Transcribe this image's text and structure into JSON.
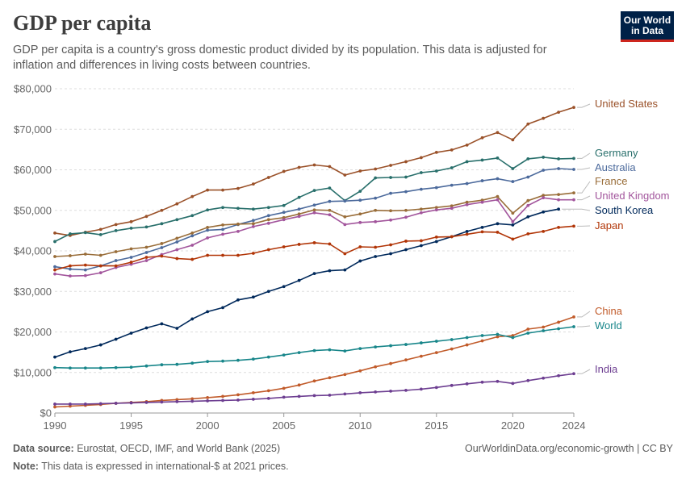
{
  "header": {
    "title": "GDP per capita",
    "subtitle": "GDP per capita is a country's gross domestic product divided by its population. This data is adjusted for inflation and differences in living costs between countries."
  },
  "logo": {
    "line1": "Our World",
    "line2": "in Data",
    "bg_color": "#002147",
    "accent_color": "#ce261e"
  },
  "footer": {
    "source_label": "Data source:",
    "source_text": "Eurostat, OECD, IMF, and World Bank (2025)",
    "note_label": "Note:",
    "note_text": "This data is expressed in international-$ at 2021 prices.",
    "license": "OurWorldinData.org/economic-growth | CC BY"
  },
  "chart_data": {
    "type": "line",
    "title": "GDP per capita",
    "xlim": [
      1990,
      2024
    ],
    "ylim": [
      0,
      80000
    ],
    "x_ticks": [
      1990,
      1995,
      2000,
      2005,
      2010,
      2015,
      2020,
      2024
    ],
    "y_ticks": [
      0,
      10000,
      20000,
      30000,
      40000,
      50000,
      60000,
      70000,
      80000
    ],
    "y_tick_labels": [
      "$0",
      "$10,000",
      "$20,000",
      "$30,000",
      "$40,000",
      "$50,000",
      "$60,000",
      "$70,000",
      "$80,000"
    ],
    "grid": "horizontal-dashed",
    "legend": "right-inline",
    "x_start": 1990,
    "series": [
      {
        "name": "United States",
        "color": "#9a5129",
        "values": [
          44400,
          43800,
          44600,
          45300,
          46500,
          47200,
          48500,
          50000,
          51600,
          53400,
          55000,
          55000,
          55400,
          56500,
          58100,
          59600,
          60600,
          61200,
          60800,
          58700,
          59700,
          60200,
          61100,
          62000,
          63000,
          64300,
          64900,
          66100,
          67900,
          69200,
          67400,
          71300,
          72700,
          74200,
          75400
        ]
      },
      {
        "name": "Germany",
        "color": "#286f6b",
        "values": [
          42300,
          44200,
          44500,
          44000,
          45000,
          45600,
          45900,
          46700,
          47700,
          48700,
          50100,
          50700,
          50500,
          50300,
          50700,
          51200,
          53200,
          54900,
          55500,
          52400,
          54700,
          58000,
          58100,
          58200,
          59300,
          59700,
          60500,
          62000,
          62400,
          62900,
          60300,
          62700,
          63100,
          62700,
          62800
        ]
      },
      {
        "name": "Australia",
        "color": "#4c6a9c",
        "values": [
          36100,
          35500,
          35300,
          36300,
          37600,
          38400,
          39600,
          40800,
          42200,
          43700,
          45100,
          45300,
          46500,
          47500,
          48700,
          49500,
          50300,
          51300,
          52200,
          52300,
          52500,
          53000,
          54200,
          54600,
          55200,
          55600,
          56200,
          56600,
          57300,
          57800,
          57100,
          58200,
          59900,
          60300,
          60100
        ]
      },
      {
        "name": "France",
        "color": "#996d39",
        "values": [
          38600,
          38800,
          39200,
          38900,
          39800,
          40500,
          40900,
          41800,
          43100,
          44400,
          45800,
          46400,
          46600,
          46700,
          47700,
          48200,
          49100,
          50100,
          50000,
          48400,
          49100,
          50000,
          49900,
          50000,
          50300,
          50700,
          51100,
          52000,
          52500,
          53400,
          49300,
          52400,
          53700,
          53900,
          54300
        ]
      },
      {
        "name": "United Kingdom",
        "color": "#a2559c",
        "values": [
          34300,
          33800,
          33900,
          34600,
          35900,
          36700,
          37600,
          39100,
          40300,
          41400,
          43200,
          44100,
          44800,
          46000,
          46800,
          47700,
          48500,
          49400,
          48900,
          46500,
          47000,
          47200,
          47600,
          48300,
          49400,
          50100,
          50500,
          51400,
          52000,
          52600,
          47200,
          51200,
          53100,
          52600,
          52600
        ]
      },
      {
        "name": "South Korea",
        "color": "#00295b",
        "values": [
          13800,
          15100,
          15900,
          16800,
          18200,
          19700,
          21000,
          22000,
          20900,
          23200,
          25000,
          26000,
          27900,
          28600,
          30000,
          31200,
          32700,
          34400,
          35100,
          35300,
          37500,
          38600,
          39300,
          40300,
          41300,
          42300,
          43500,
          44800,
          45800,
          46700,
          46400,
          48400,
          49600,
          50300
        ]
      },
      {
        "name": "Japan",
        "color": "#b13507",
        "values": [
          35300,
          36300,
          36500,
          36300,
          36300,
          37200,
          38400,
          38700,
          38100,
          37900,
          38900,
          38900,
          38900,
          39400,
          40300,
          41000,
          41600,
          42000,
          41700,
          39300,
          41000,
          40900,
          41500,
          42400,
          42500,
          43400,
          43500,
          44100,
          44700,
          44600,
          42900,
          44200,
          44800,
          45800,
          46100
        ]
      },
      {
        "name": "China",
        "color": "#c15b2a",
        "values": [
          1500,
          1700,
          1900,
          2100,
          2400,
          2600,
          2800,
          3100,
          3300,
          3500,
          3800,
          4100,
          4500,
          5000,
          5500,
          6100,
          6900,
          7900,
          8700,
          9500,
          10400,
          11400,
          12200,
          13100,
          14000,
          14900,
          15800,
          16800,
          17800,
          18800,
          19100,
          20700,
          21200,
          22400,
          23700
        ]
      },
      {
        "name": "World",
        "color": "#18868a",
        "values": [
          11200,
          11100,
          11100,
          11100,
          11200,
          11300,
          11600,
          11900,
          12000,
          12300,
          12700,
          12800,
          13000,
          13300,
          13800,
          14300,
          14900,
          15400,
          15600,
          15300,
          15900,
          16300,
          16600,
          16900,
          17300,
          17700,
          18100,
          18600,
          19100,
          19400,
          18600,
          19700,
          20300,
          20800,
          21300
        ]
      },
      {
        "name": "India",
        "color": "#6d3e91",
        "values": [
          2200,
          2200,
          2200,
          2300,
          2400,
          2500,
          2600,
          2700,
          2800,
          2900,
          3000,
          3100,
          3200,
          3400,
          3600,
          3900,
          4100,
          4300,
          4400,
          4700,
          5000,
          5200,
          5400,
          5600,
          5900,
          6300,
          6800,
          7200,
          7600,
          7800,
          7300,
          8000,
          8600,
          9200,
          9700
        ]
      }
    ]
  }
}
